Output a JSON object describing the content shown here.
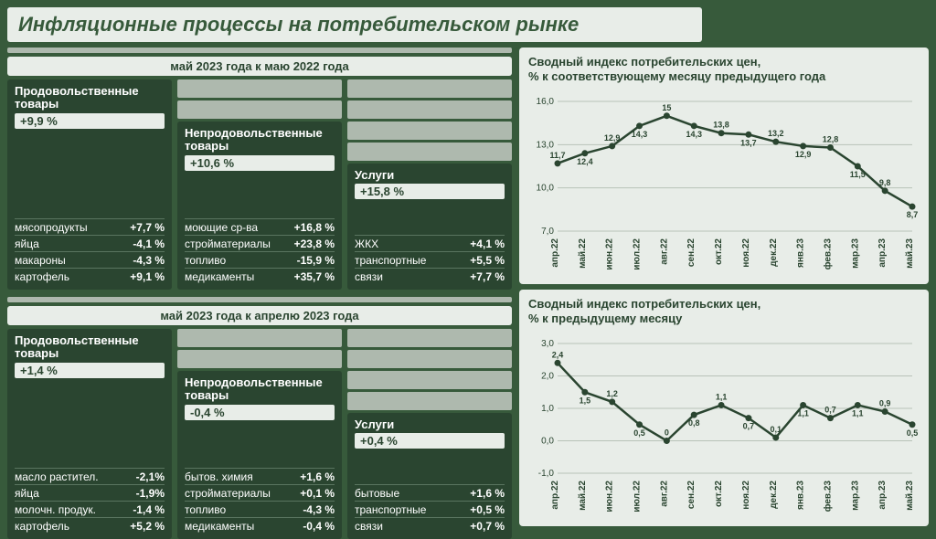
{
  "title": "Инфляционные процессы на потребительском рынке",
  "colors": {
    "bg": "#375a3b",
    "card": "#2a4530",
    "panel": "#e8ede8",
    "spacer": "#aeb9ae",
    "line": "#5a7560",
    "white": "#ffffff",
    "dot": "#2a4530",
    "grid": "#b8c2b8",
    "tick_text": "#2a4530"
  },
  "section_a": {
    "header": "май 2023 года к  маю 2022 года",
    "cards": [
      {
        "title": "Продовольственные товары",
        "headline": "+9,9 %",
        "rows": [
          {
            "label": "мясопродукты",
            "val": "+7,7 %"
          },
          {
            "label": "яйца",
            "val": "-4,1 %"
          },
          {
            "label": "макароны",
            "val": "-4,3 %"
          },
          {
            "label": "картофель",
            "val": "+9,1 %"
          }
        ]
      },
      {
        "title": "Непродовольственные товары",
        "headline": "+10,6 %",
        "rows": [
          {
            "label": "моющие ср-ва",
            "val": "+16,8 %"
          },
          {
            "label": "стройматериалы",
            "val": "+23,8 %"
          },
          {
            "label": "топливо",
            "val": "-15,9 %"
          },
          {
            "label": "медикаменты",
            "val": "+35,7 %"
          }
        ]
      },
      {
        "title": "Услуги",
        "headline": "+15,8 %",
        "rows": [
          {
            "label": "ЖКХ",
            "val": "+4,1 %"
          },
          {
            "label": "транспортные",
            "val": "+5,5 %"
          },
          {
            "label": "связи",
            "val": "+7,7 %"
          }
        ]
      }
    ]
  },
  "section_b": {
    "header": "май 2023 года к апрелю 2023 года",
    "cards": [
      {
        "title": "Продовольственные товары",
        "headline": "+1,4 %",
        "rows": [
          {
            "label": "масло растител.",
            "val": "-2,1%"
          },
          {
            "label": "яйца",
            "val": "-1,9%"
          },
          {
            "label": "молочн. продук.",
            "val": "-1,4 %"
          },
          {
            "label": "картофель",
            "val": "+5,2 %"
          }
        ]
      },
      {
        "title": "Непродовольственные товары",
        "headline": "-0,4 %",
        "rows": [
          {
            "label": "бытов. химия",
            "val": "+1,6 %"
          },
          {
            "label": "стройматериалы",
            "val": "+0,1 %"
          },
          {
            "label": "топливо",
            "val": "-4,3 %"
          },
          {
            "label": "медикаменты",
            "val": "-0,4 %"
          }
        ]
      },
      {
        "title": "Услуги",
        "headline": "+0,4 %",
        "rows": [
          {
            "label": "бытовые",
            "val": "+1,6 %"
          },
          {
            "label": "транспортные",
            "val": "+0,5 %"
          },
          {
            "label": "связи",
            "val": "+0,7 %"
          }
        ]
      }
    ]
  },
  "chart1": {
    "title_l1": "Сводный индекс потребительских цен,",
    "title_l2": "% к соответствующему месяцу предыдущего года",
    "type": "line",
    "categories": [
      "апр.22",
      "май.22",
      "июн.22",
      "июл.22",
      "авг.22",
      "сен.22",
      "окт.22",
      "ноя.22",
      "дек.22",
      "янв.23",
      "фев.23",
      "мар.23",
      "апр.23",
      "май.23"
    ],
    "values": [
      11.7,
      12.4,
      12.9,
      14.3,
      15.0,
      14.3,
      13.8,
      13.7,
      13.2,
      12.9,
      12.8,
      11.5,
      9.8,
      8.7
    ],
    "ylim": [
      7.0,
      16.0
    ],
    "ytick_step": 3.0,
    "line_color": "#2a4530",
    "dot_color": "#2a4530",
    "grid_color": "#b8c2b8",
    "background_color": "#e8ede8",
    "label_fontsize": 9,
    "axis_fontsize": 10,
    "line_width": 2.5,
    "marker_size": 3.5
  },
  "chart2": {
    "title_l1": "Сводный индекс потребительских цен,",
    "title_l2": "% к предыдущему месяцу",
    "type": "line",
    "categories": [
      "апр.22",
      "май.22",
      "июн.22",
      "июл.22",
      "авг.22",
      "сен.22",
      "окт.22",
      "ноя.22",
      "дек.22",
      "янв.23",
      "фев.23",
      "мар.23",
      "апр.23",
      "май.23"
    ],
    "values": [
      2.4,
      1.5,
      1.2,
      0.5,
      0,
      0.8,
      1.1,
      0.7,
      0.1,
      1.1,
      0.7,
      1.1,
      0.9,
      0.5
    ],
    "ylim": [
      -1.0,
      3.0
    ],
    "ytick_step": 1.0,
    "line_color": "#2a4530",
    "dot_color": "#2a4530",
    "grid_color": "#b8c2b8",
    "background_color": "#e8ede8",
    "label_fontsize": 9,
    "axis_fontsize": 10,
    "line_width": 2.5,
    "marker_size": 3.5
  }
}
